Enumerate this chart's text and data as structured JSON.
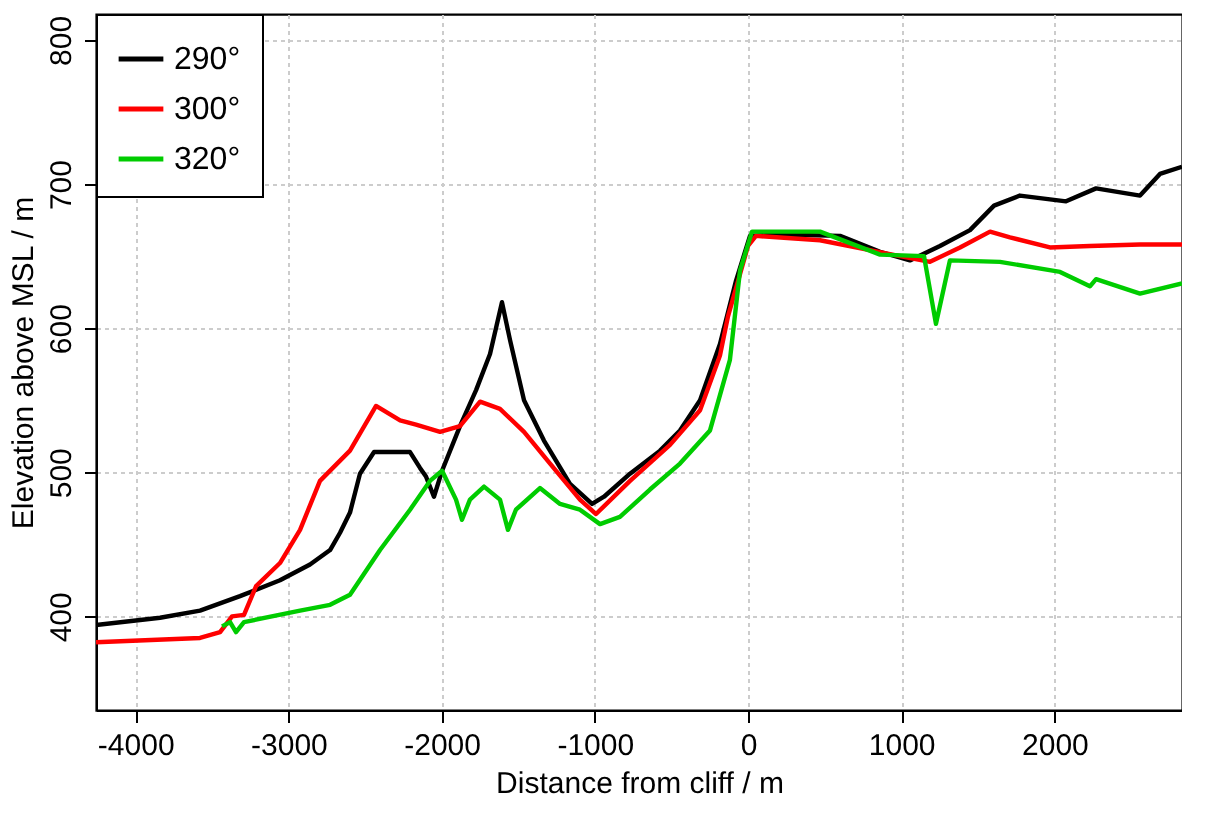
{
  "chart_data": {
    "type": "line",
    "xlabel": "Distance from cliff / m",
    "ylabel": "Elevation above MSL / m",
    "xlim": [
      -4256,
      2833
    ],
    "ylim": [
      335,
      818
    ],
    "xticks": [
      -4000,
      -3000,
      -2000,
      -1000,
      0,
      1000,
      2000
    ],
    "yticks": [
      400,
      500,
      600,
      700,
      800
    ],
    "grid": true,
    "legend": "top left",
    "line_style": "solid",
    "marker": "none",
    "series": [
      {
        "name": "290°",
        "color": "#000000",
        "x": [
          -4256,
          -3838,
          -3577,
          -3316,
          -3055,
          -2859,
          -2728,
          -2663,
          -2598,
          -2533,
          -2441,
          -2206,
          -2141,
          -2102,
          -2050,
          -1997,
          -1880,
          -1775,
          -1684,
          -1606,
          -1554,
          -1462,
          -1332,
          -1162,
          -1018,
          -940,
          -770,
          -574,
          -444,
          -313,
          -183,
          -78,
          13,
          209,
          601,
          862,
          1057,
          1253,
          1449,
          1606,
          1775,
          2076,
          2272,
          2559,
          2689,
          2833
        ],
        "values": [
          394,
          399,
          404,
          414,
          425,
          436,
          446,
          458,
          472,
          499,
          514,
          514,
          503,
          497,
          483,
          501,
          532,
          557,
          582,
          618,
          592,
          550,
          522,
          492,
          478,
          483,
          499,
          515,
          529,
          550,
          589,
          633,
          664,
          665,
          664,
          653,
          647,
          657,
          668,
          685,
          692,
          688,
          697,
          692,
          707,
          712
        ]
      },
      {
        "name": "300°",
        "color": "#ff0000",
        "x": [
          -4256,
          -3577,
          -3446,
          -3368,
          -3290,
          -3211,
          -3055,
          -2924,
          -2794,
          -2598,
          -2428,
          -2271,
          -2167,
          -2010,
          -1880,
          -1749,
          -1619,
          -1462,
          -1292,
          -1097,
          -992,
          -770,
          -509,
          -313,
          -183,
          -131,
          0,
          52,
          470,
          992,
          1188,
          1384,
          1580,
          1710,
          1971,
          2232,
          2559,
          2833
        ],
        "values": [
          382,
          385,
          389,
          400,
          401,
          421,
          437,
          460,
          494,
          515,
          546,
          536,
          533,
          528,
          532,
          549,
          544,
          528,
          506,
          481,
          471,
          494,
          519,
          543,
          581,
          608,
          657,
          664,
          661,
          650,
          646,
          656,
          667,
          663,
          656,
          657,
          658,
          658
        ]
      },
      {
        "name": "320°",
        "color": "#00cc00",
        "x": [
          -3433,
          -3381,
          -3342,
          -3290,
          -2924,
          -2728,
          -2598,
          -2402,
          -2206,
          -2076,
          -1997,
          -1906,
          -1867,
          -1815,
          -1723,
          -1619,
          -1567,
          -1515,
          -1358,
          -1227,
          -1097,
          -966,
          -836,
          -640,
          -444,
          -248,
          -118,
          -52,
          26,
          470,
          862,
          1149,
          1227,
          1318,
          1645,
          2037,
          2232,
          2272,
          2559,
          2833
        ],
        "values": [
          393,
          396,
          389,
          396,
          404,
          408,
          415,
          446,
          474,
          494,
          501,
          481,
          467,
          481,
          490,
          481,
          460,
          474,
          489,
          478,
          474,
          464,
          469,
          488,
          506,
          529,
          578,
          640,
          667,
          667,
          651,
          650,
          603,
          647,
          646,
          639,
          629,
          634,
          624,
          631
        ]
      }
    ]
  }
}
